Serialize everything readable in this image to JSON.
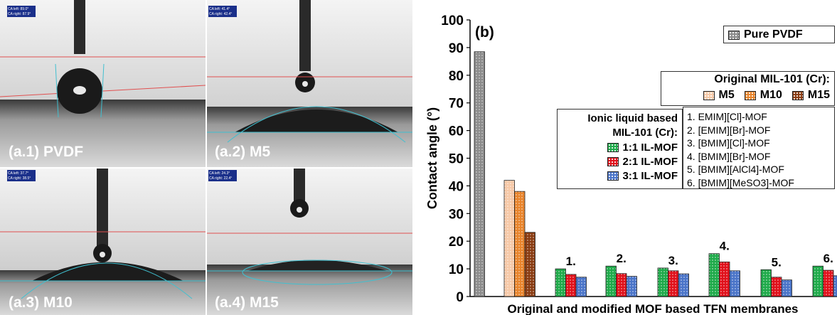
{
  "photos": [
    {
      "label": "(a.1) PVDF",
      "readout": [
        "CA left: 89.0°",
        "CA right: 87.9°"
      ],
      "shape": "sessile"
    },
    {
      "label": "(a.2) M5",
      "readout": [
        "CA left: 41.4°",
        "CA right: 42.4°"
      ],
      "shape": "spread"
    },
    {
      "label": "(a.3) M10",
      "readout": [
        "CA left: 37.7°",
        "CA right: 38.5°"
      ],
      "shape": "flat"
    },
    {
      "label": "(a.4) M15",
      "readout": [
        "CA left: 24.3°",
        "CA right: 22.4°"
      ],
      "shape": "thin"
    }
  ],
  "chart_data": {
    "type": "bar",
    "panel_label": "(b)",
    "xlabel": "Original and modified MOF based TFN membranes",
    "ylabel": "Contact angle (°)",
    "ylim": [
      0,
      100
    ],
    "yticks": [
      0,
      10,
      20,
      30,
      40,
      50,
      60,
      70,
      80,
      90,
      100
    ],
    "grid": false,
    "groups": [
      {
        "label": "",
        "bars": [
          {
            "series": "Pure PVDF",
            "value": 88.5
          }
        ]
      },
      {
        "label": "",
        "bars": [
          {
            "series": "M5",
            "value": 42
          },
          {
            "series": "M10",
            "value": 38
          },
          {
            "series": "M15",
            "value": 23.2
          }
        ]
      },
      {
        "label": "1.",
        "bars": [
          {
            "series": "1:1 IL-MOF",
            "value": 10
          },
          {
            "series": "2:1 IL-MOF",
            "value": 8
          },
          {
            "series": "3:1 IL-MOF",
            "value": 7
          }
        ]
      },
      {
        "label": "2.",
        "bars": [
          {
            "series": "1:1 IL-MOF",
            "value": 11
          },
          {
            "series": "2:1 IL-MOF",
            "value": 8.3
          },
          {
            "series": "3:1 IL-MOF",
            "value": 7.3
          }
        ]
      },
      {
        "label": "3.",
        "bars": [
          {
            "series": "1:1 IL-MOF",
            "value": 10.3
          },
          {
            "series": "2:1 IL-MOF",
            "value": 9.3
          },
          {
            "series": "3:1 IL-MOF",
            "value": 8.2
          }
        ]
      },
      {
        "label": "4.",
        "bars": [
          {
            "series": "1:1 IL-MOF",
            "value": 15.5
          },
          {
            "series": "2:1 IL-MOF",
            "value": 12.5
          },
          {
            "series": "3:1 IL-MOF",
            "value": 9.3
          }
        ]
      },
      {
        "label": "5.",
        "bars": [
          {
            "series": "1:1 IL-MOF",
            "value": 9.7
          },
          {
            "series": "2:1 IL-MOF",
            "value": 7
          },
          {
            "series": "3:1 IL-MOF",
            "value": 6
          }
        ]
      },
      {
        "label": "6.",
        "bars": [
          {
            "series": "1:1 IL-MOF",
            "value": 11
          },
          {
            "series": "2:1 IL-MOF",
            "value": 9.5
          },
          {
            "series": "3:1 IL-MOF",
            "value": 7.5
          }
        ]
      }
    ],
    "series_colors": {
      "Pure PVDF": "#8c8c8c",
      "M5": "#f6c9a8",
      "M10": "#e8842c",
      "M15": "#8a3c12",
      "1:1 IL-MOF": "#1faa4a",
      "2:1 IL-MOF": "#e0111b",
      "3:1 IL-MOF": "#4a74c8"
    },
    "legends": {
      "pure": {
        "label": "Pure PVDF"
      },
      "original": {
        "title": "Original MIL-101 (Cr):",
        "items": [
          "M5",
          "M10",
          "M15"
        ]
      },
      "ionic": {
        "title_line1": "Ionic liquid based",
        "title_line2": "MIL-101 (Cr):",
        "items": [
          "1:1 IL-MOF",
          "2:1 IL-MOF",
          "3:1 IL-MOF"
        ]
      },
      "numbered": [
        "1. EMIM][Cl]-MOF",
        "2. [EMIM][Br]-MOF",
        "3. [BMIM][Cl]-MOF",
        "4. [BMIM][Br]-MOF",
        "5. [BMIM][AlCl4]-MOF",
        "6. [BMIM][MeSO3]-MOF"
      ]
    }
  }
}
